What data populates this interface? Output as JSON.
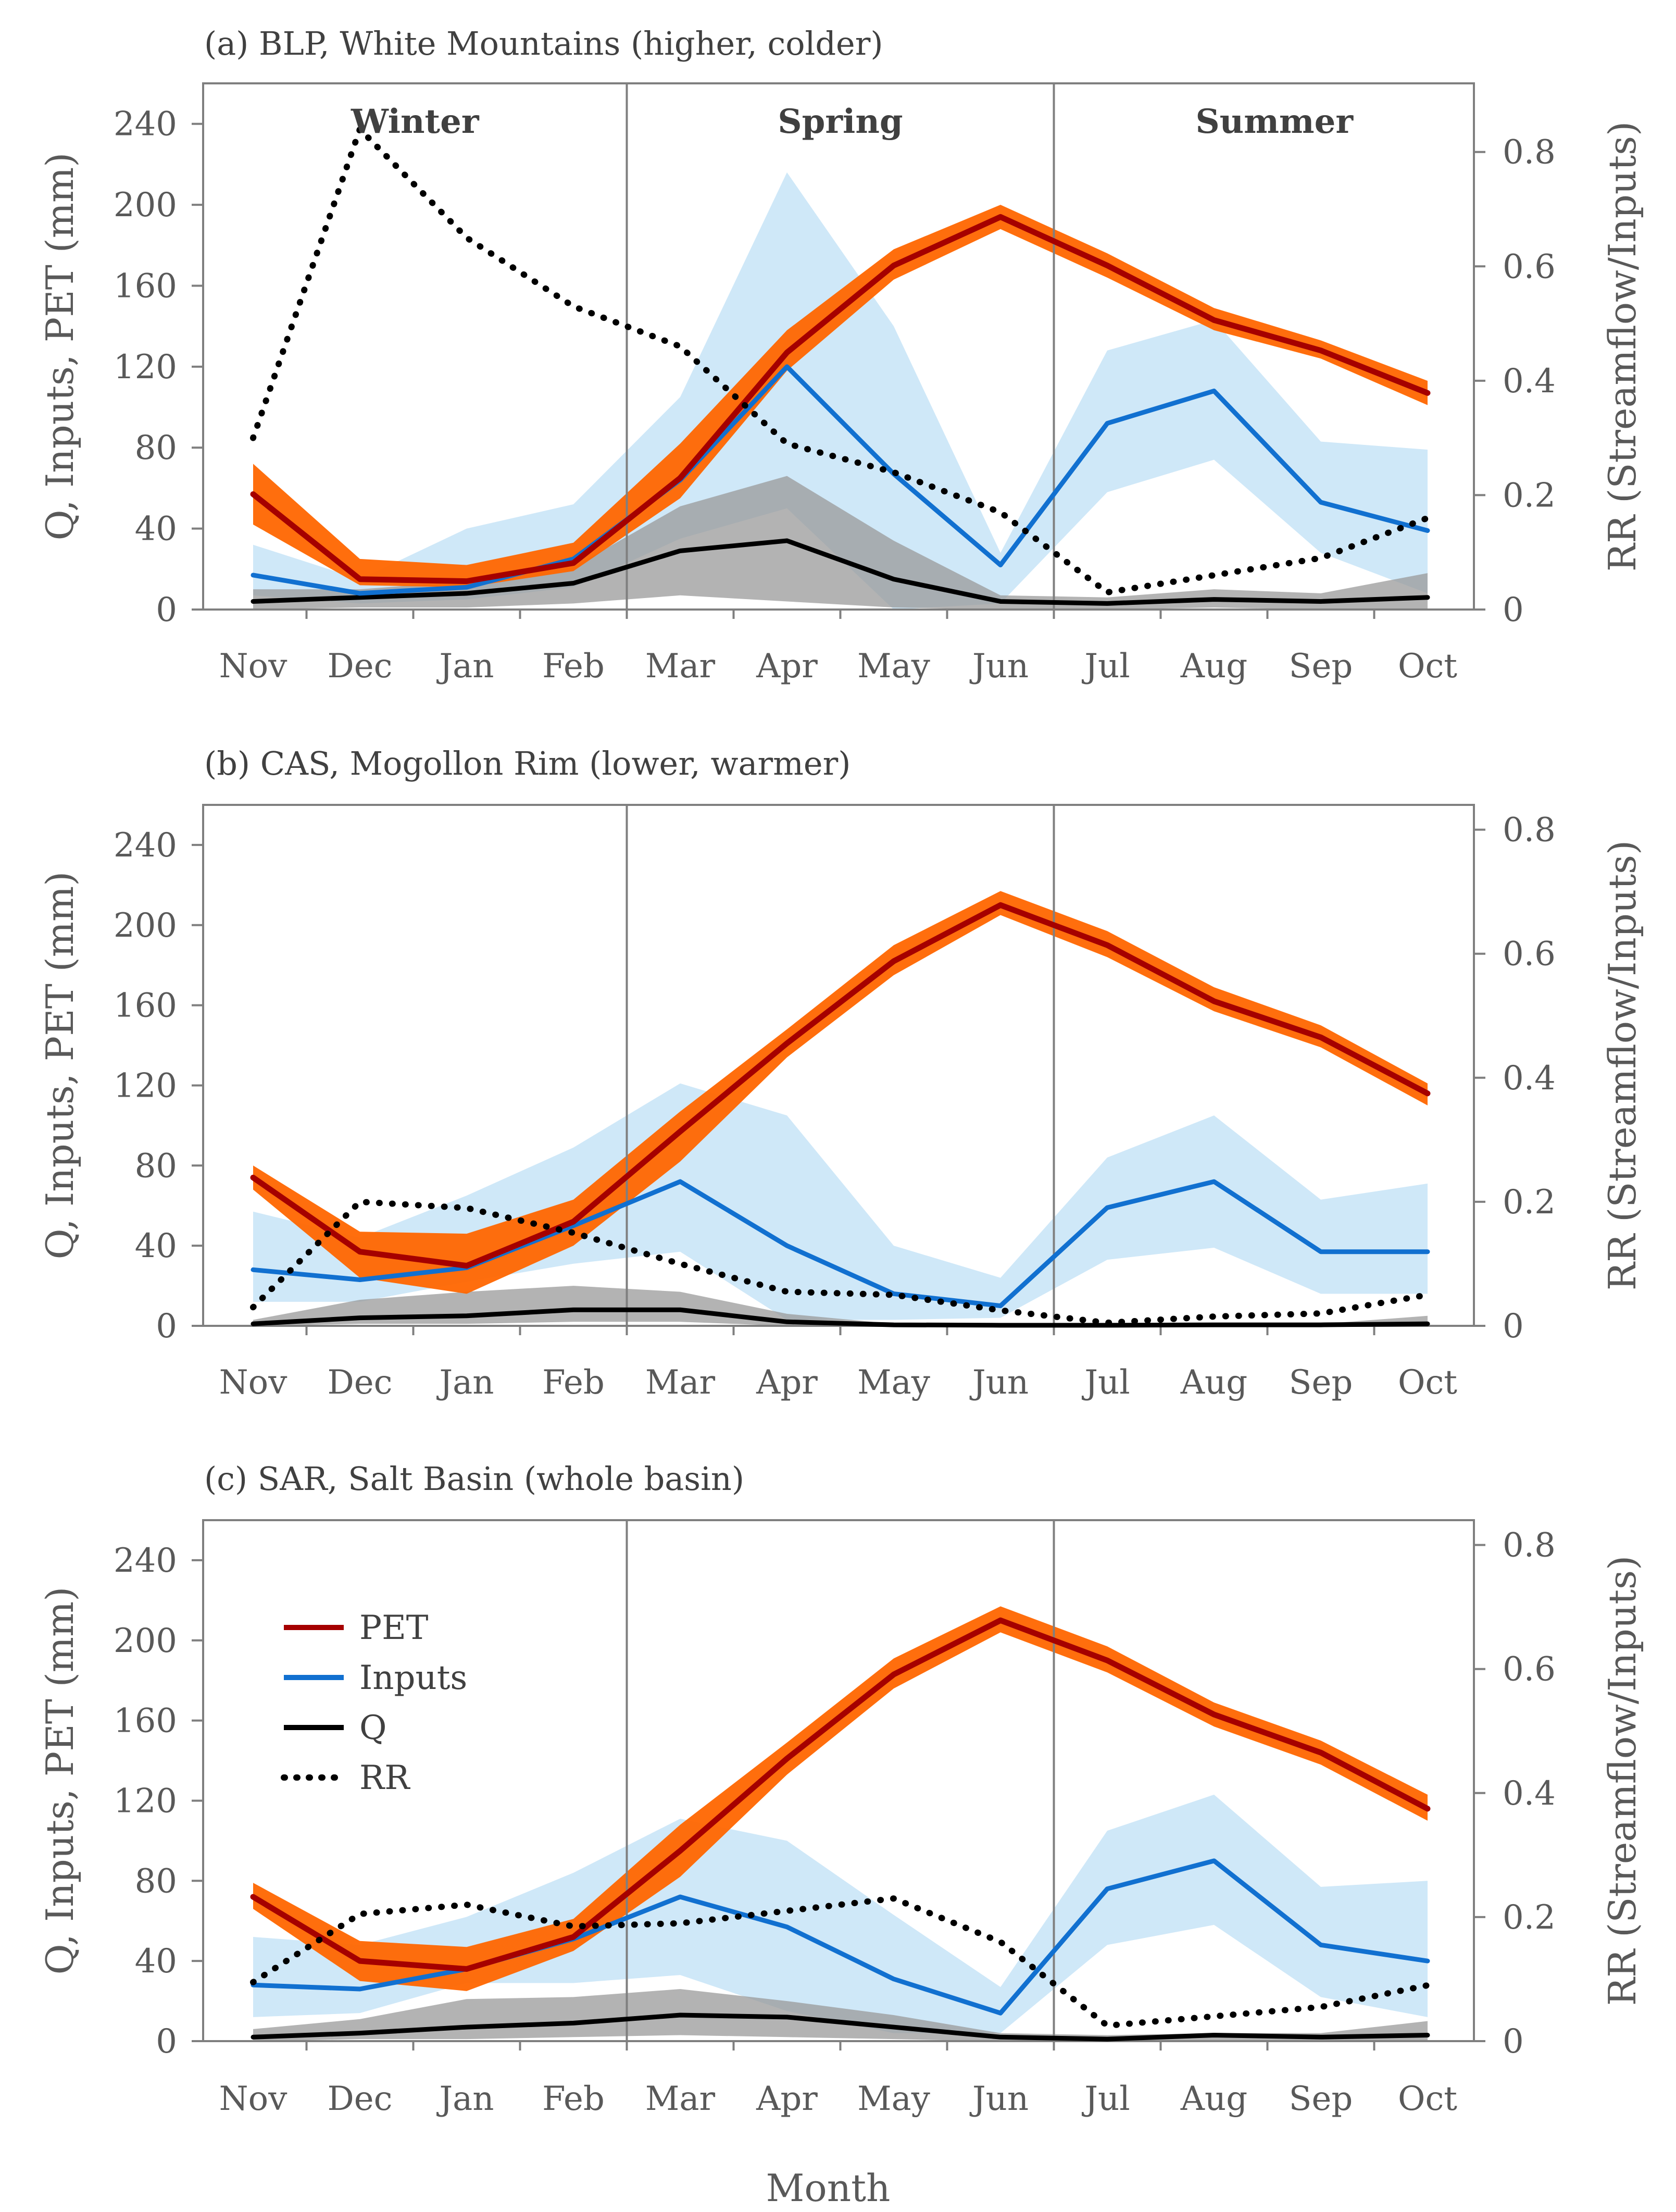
{
  "figure": {
    "xlabel": "Month",
    "colors": {
      "pet_line": "#a50000",
      "pet_band": "#ff6600",
      "inputs_line": "#1170d0",
      "inputs_band": "#cfe8f8",
      "q_line": "#000000",
      "q_band": "#9a9a9a",
      "rr_line": "#000000",
      "frame": "#7f7f7f"
    },
    "legend": [
      {
        "key": "PET",
        "label": "PET"
      },
      {
        "key": "Inputs",
        "label": "Inputs"
      },
      {
        "key": "Q",
        "label": "Q"
      },
      {
        "key": "RR",
        "label": "RR"
      }
    ]
  },
  "chart_data": [
    {
      "type": "line",
      "title": "(a) BLP, White Mountains (higher, colder)",
      "categories": [
        "Nov",
        "Dec",
        "Jan",
        "Feb",
        "Mar",
        "Apr",
        "May",
        "Jun",
        "Jul",
        "Aug",
        "Sep",
        "Oct"
      ],
      "xlabel": "",
      "ylabel": "Q, Inputs, PET (mm)",
      "ylabel_right": "RR (Streamflow/Inputs)",
      "ylim": [
        0,
        260
      ],
      "yticks": [
        0,
        40,
        80,
        120,
        160,
        200,
        240
      ],
      "ylim_right": [
        0,
        0.92
      ],
      "yticks_right": [
        0,
        0.2,
        0.4,
        0.6,
        0.8
      ],
      "season_labels": [
        "Winter",
        "Spring",
        "Summer"
      ],
      "dividers_after": [
        3.5,
        7.5
      ],
      "series": [
        {
          "name": "PET",
          "axis": "left",
          "values": [
            57,
            15,
            14,
            23,
            65,
            127,
            170,
            194,
            170,
            143,
            128,
            107
          ],
          "lower": [
            42,
            12,
            11,
            19,
            55,
            118,
            163,
            188,
            164,
            138,
            124,
            101
          ],
          "upper": [
            72,
            25,
            22,
            33,
            82,
            138,
            178,
            200,
            176,
            149,
            133,
            113
          ]
        },
        {
          "name": "Inputs",
          "axis": "left",
          "values": [
            17,
            8,
            11,
            25,
            64,
            120,
            67,
            22,
            92,
            108,
            53,
            39
          ],
          "lower": [
            7,
            3,
            5,
            11,
            35,
            50,
            0,
            3,
            58,
            74,
            28,
            8
          ],
          "upper": [
            32,
            15,
            40,
            52,
            105,
            216,
            140,
            28,
            128,
            143,
            83,
            79
          ]
        },
        {
          "name": "Q",
          "axis": "left",
          "values": [
            4,
            6,
            8,
            13,
            29,
            34,
            15,
            4,
            3,
            5,
            4,
            6
          ],
          "lower": [
            0,
            1,
            1,
            3,
            7,
            4,
            1,
            0,
            0,
            1,
            0,
            0
          ],
          "upper": [
            10,
            10,
            14,
            21,
            51,
            66,
            34,
            7,
            6,
            10,
            8,
            18
          ]
        },
        {
          "name": "RR",
          "axis": "right",
          "values": [
            0.3,
            0.84,
            0.65,
            0.53,
            0.46,
            0.29,
            0.24,
            0.17,
            0.03,
            0.06,
            0.09,
            0.16
          ]
        }
      ]
    },
    {
      "type": "line",
      "title": "(b) CAS, Mogollon Rim (lower, warmer)",
      "categories": [
        "Nov",
        "Dec",
        "Jan",
        "Feb",
        "Mar",
        "Apr",
        "May",
        "Jun",
        "Jul",
        "Aug",
        "Sep",
        "Oct"
      ],
      "xlabel": "",
      "ylabel": "Q, Inputs, PET (mm)",
      "ylabel_right": "RR (Streamflow/Inputs)",
      "ylim": [
        0,
        260
      ],
      "yticks": [
        0,
        40,
        80,
        120,
        160,
        200,
        240
      ],
      "ylim_right": [
        0,
        0.84
      ],
      "yticks_right": [
        0,
        0.2,
        0.4,
        0.6,
        0.8
      ],
      "season_labels": [],
      "dividers_after": [
        3.5,
        7.5
      ],
      "series": [
        {
          "name": "PET",
          "axis": "left",
          "values": [
            74,
            37,
            30,
            52,
            97,
            141,
            182,
            210,
            190,
            162,
            144,
            116
          ],
          "lower": [
            68,
            24,
            16,
            40,
            82,
            134,
            175,
            205,
            184,
            157,
            139,
            110
          ],
          "upper": [
            80,
            47,
            46,
            63,
            107,
            148,
            190,
            217,
            197,
            169,
            150,
            121
          ]
        },
        {
          "name": "Inputs",
          "axis": "left",
          "values": [
            28,
            23,
            29,
            50,
            72,
            40,
            16,
            10,
            59,
            72,
            37,
            37
          ],
          "lower": [
            12,
            12,
            22,
            31,
            37,
            3,
            3,
            4,
            33,
            39,
            16,
            16
          ],
          "upper": [
            57,
            44,
            65,
            89,
            121,
            105,
            40,
            24,
            84,
            105,
            63,
            71
          ]
        },
        {
          "name": "Q",
          "axis": "left",
          "values": [
            1,
            4,
            5,
            8,
            8,
            2,
            0.5,
            0.3,
            0.3,
            0.5,
            0.5,
            1
          ],
          "lower": [
            0,
            1,
            1,
            2,
            2,
            0,
            0,
            0,
            0,
            0,
            0,
            0
          ],
          "upper": [
            3,
            13,
            17,
            20,
            17,
            6,
            1,
            1,
            1,
            1,
            1,
            5
          ]
        },
        {
          "name": "RR",
          "axis": "right",
          "values": [
            0.03,
            0.2,
            0.19,
            0.15,
            0.1,
            0.055,
            0.05,
            0.025,
            0.005,
            0.015,
            0.02,
            0.05
          ]
        }
      ]
    },
    {
      "type": "line",
      "title": "(c) SAR, Salt Basin (whole basin)",
      "categories": [
        "Nov",
        "Dec",
        "Jan",
        "Feb",
        "Mar",
        "Apr",
        "May",
        "Jun",
        "Jul",
        "Aug",
        "Sep",
        "Oct"
      ],
      "xlabel": "Month",
      "ylabel": "Q, Inputs, PET (mm)",
      "ylabel_right": "RR (Streamflow/Inputs)",
      "ylim": [
        0,
        260
      ],
      "yticks": [
        0,
        40,
        80,
        120,
        160,
        200,
        240
      ],
      "ylim_right": [
        0,
        0.84
      ],
      "yticks_right": [
        0,
        0.2,
        0.4,
        0.6,
        0.8
      ],
      "season_labels": [],
      "dividers_after": [
        3.5,
        7.5
      ],
      "series": [
        {
          "name": "PET",
          "axis": "left",
          "values": [
            72,
            40,
            36,
            52,
            95,
            141,
            183,
            210,
            190,
            163,
            144,
            116
          ],
          "lower": [
            66,
            30,
            25,
            45,
            82,
            133,
            176,
            204,
            184,
            157,
            138,
            110
          ],
          "upper": [
            79,
            50,
            47,
            61,
            108,
            149,
            191,
            217,
            197,
            169,
            150,
            123
          ]
        },
        {
          "name": "Inputs",
          "axis": "left",
          "values": [
            28,
            26,
            36,
            51,
            72,
            57,
            31,
            14,
            76,
            90,
            48,
            40
          ],
          "lower": [
            12,
            14,
            29,
            29,
            33,
            15,
            4,
            4,
            48,
            58,
            22,
            12
          ],
          "upper": [
            52,
            48,
            62,
            84,
            111,
            100,
            63,
            27,
            105,
            123,
            77,
            80
          ]
        },
        {
          "name": "Q",
          "axis": "left",
          "values": [
            2,
            4,
            7,
            9,
            13,
            12,
            7,
            2,
            1,
            3,
            2,
            3
          ],
          "lower": [
            0,
            1,
            1,
            2,
            3,
            2,
            1,
            0,
            0,
            0,
            0,
            0
          ],
          "upper": [
            6,
            11,
            21,
            22,
            26,
            20,
            13,
            4,
            3,
            4,
            4,
            10
          ]
        },
        {
          "name": "RR",
          "axis": "right",
          "values": [
            0.095,
            0.205,
            0.22,
            0.185,
            0.19,
            0.21,
            0.23,
            0.16,
            0.025,
            0.04,
            0.055,
            0.09
          ]
        }
      ]
    }
  ]
}
